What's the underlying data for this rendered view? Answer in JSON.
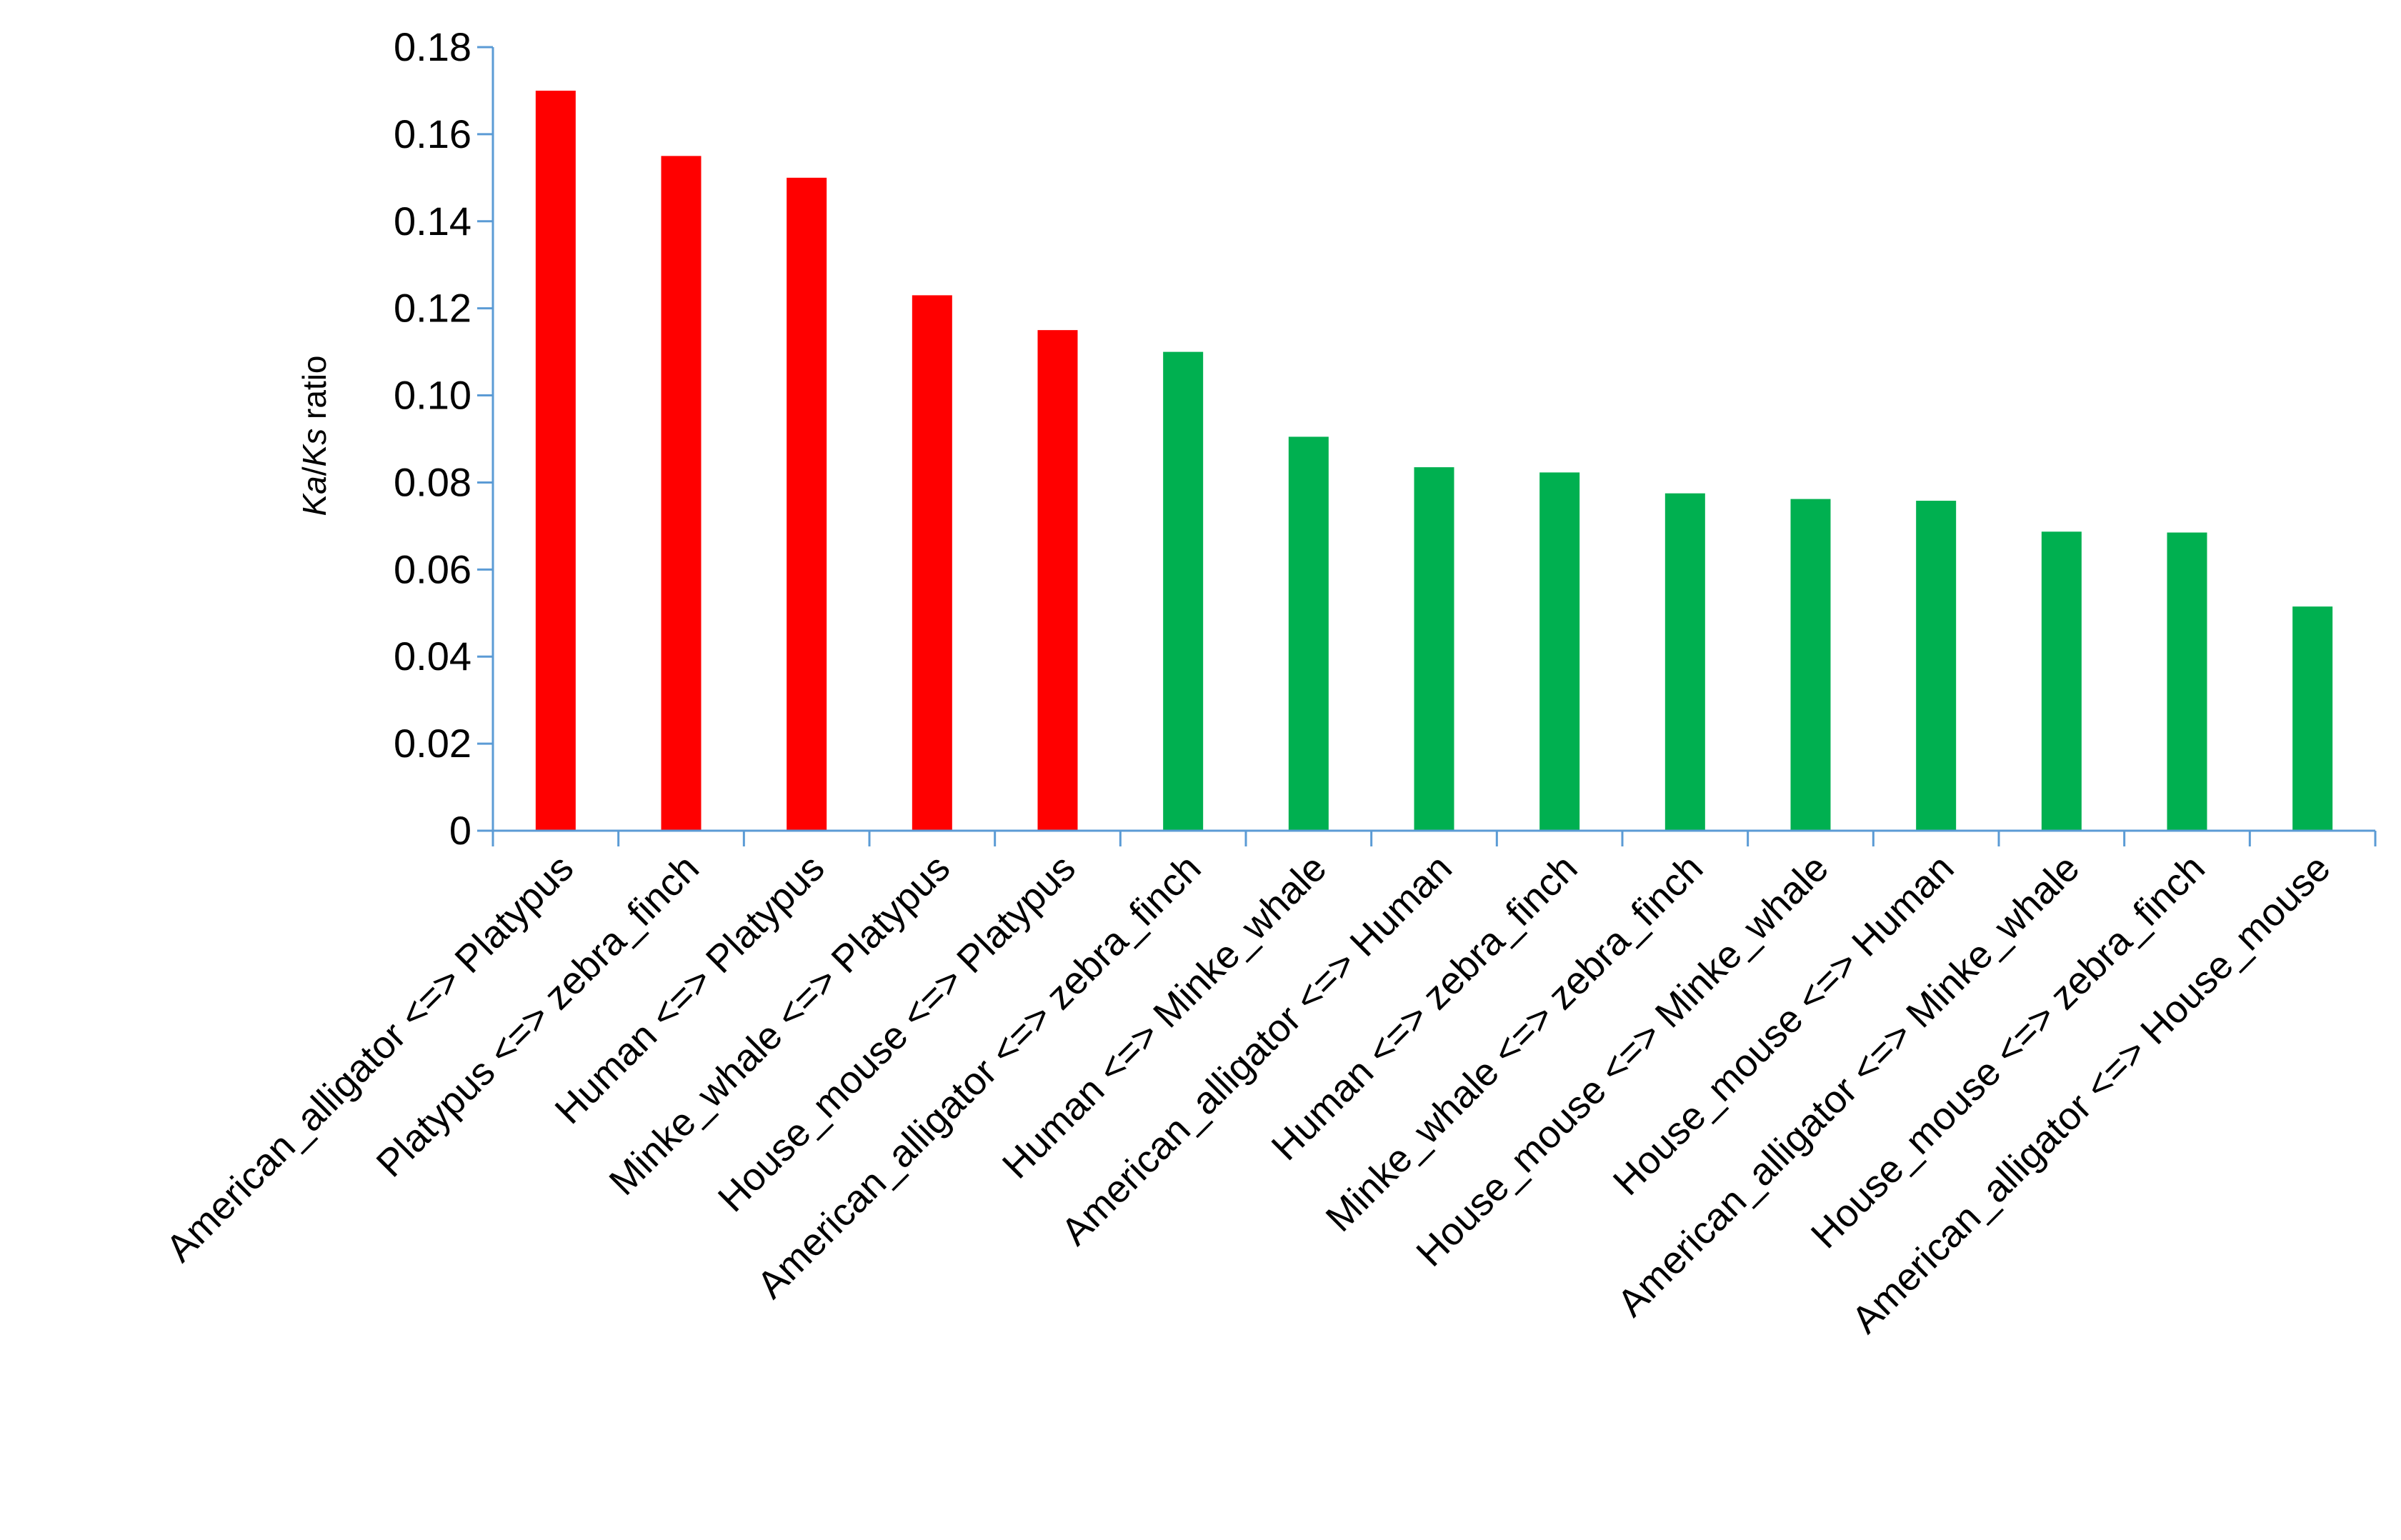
{
  "chart_data": {
    "type": "bar",
    "title": "",
    "xlabel": "",
    "ylabel_parts": {
      "numerator": "Ka",
      "slash": "/",
      "denominator": "Ks",
      "suffix": " ratio"
    },
    "ylim": [
      0,
      0.18
    ],
    "yticks": [
      "0",
      "0.02",
      "0.04",
      "0.06",
      "0.08",
      "0.10",
      "0.12",
      "0.14",
      "0.16",
      "0.18"
    ],
    "ytick_values": [
      0,
      0.02,
      0.04,
      0.06,
      0.08,
      0.1,
      0.12,
      0.14,
      0.16,
      0.18
    ],
    "grid": false,
    "legend": "none",
    "axis_color": "#5b9bd5",
    "categories": [
      "American_alligator <=> Platypus",
      "Platypus <=> zebra_finch",
      "Human <=> Platypus",
      "Minke_whale <=> Platypus",
      "House_mouse <=> Platypus",
      "American_alligator <=> zebra_finch",
      "Human <=> Minke_whale",
      "American_alligator <=> Human",
      "Human <=> zebra_finch",
      "Minke_whale <=> zebra_finch",
      "House_mouse <=> Minke_whale",
      "House_mouse <=> Human",
      "American_alligator <=> Minke_whale",
      "House_mouse <=> zebra_finch",
      "American_alligator <=> House_mouse"
    ],
    "values": [
      0.17,
      0.155,
      0.15,
      0.123,
      0.115,
      0.11,
      0.0905,
      0.0835,
      0.0823,
      0.0775,
      0.0762,
      0.0758,
      0.0687,
      0.0685,
      0.0515
    ],
    "colors": [
      "#ff0000",
      "#ff0000",
      "#ff0000",
      "#ff0000",
      "#ff0000",
      "#00b050",
      "#00b050",
      "#00b050",
      "#00b050",
      "#00b050",
      "#00b050",
      "#00b050",
      "#00b050",
      "#00b050",
      "#00b050"
    ]
  }
}
